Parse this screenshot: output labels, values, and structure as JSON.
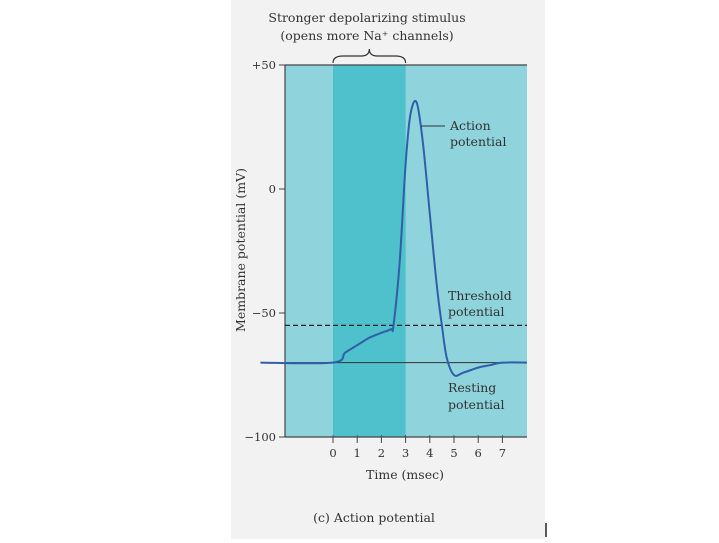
{
  "chart_data": {
    "type": "line",
    "caption": "(c) Action potential",
    "xlabel": "Time (msec)",
    "ylabel": "Membrane potential (mV)",
    "xlim": [
      -3,
      8
    ],
    "ylim": [
      -100,
      50
    ],
    "x_ticks": [
      0,
      1,
      2,
      3,
      4,
      5,
      6,
      7
    ],
    "y_ticks": [
      {
        "value": 50,
        "label": "+50"
      },
      {
        "value": 0,
        "label": "0"
      },
      {
        "value": -50,
        "label": "−50"
      },
      {
        "value": -100,
        "label": "−100"
      }
    ],
    "stimulus_window": [
      0,
      3
    ],
    "threshold": -55,
    "resting": -70,
    "grid": false,
    "series": [
      {
        "color": "#2f5fa8",
        "x": [
          -3,
          0,
          0.5,
          1,
          1.5,
          2,
          2.4,
          2.5,
          2.75,
          3,
          3.2,
          3.45,
          3.7,
          4,
          4.3,
          4.5,
          4.7,
          5,
          5.4,
          6,
          6.5,
          7,
          8
        ],
        "y": [
          -70,
          -70,
          -66,
          -63,
          -60,
          -58,
          -56.5,
          -55,
          -30,
          10,
          30,
          35,
          20,
          -10,
          -40,
          -55,
          -68,
          -75,
          -74,
          -72,
          -71,
          -70,
          -70
        ]
      }
    ],
    "annotations": {
      "stimulus": [
        "Stronger depolarizing stimulus",
        "(opens more Na⁺ channels)"
      ],
      "action_potential": [
        "Action",
        "potential"
      ],
      "threshold_potential": [
        "Threshold",
        "potential"
      ],
      "resting_potential": [
        "Resting",
        "potential"
      ]
    }
  }
}
